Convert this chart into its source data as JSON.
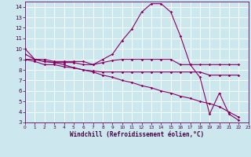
{
  "xlabel": "Windchill (Refroidissement éolien,°C)",
  "bg_color": "#cce8ee",
  "line_color": "#880066",
  "grid_color": "#aaddcc",
  "xlim": [
    0,
    23
  ],
  "ylim": [
    3,
    14.5
  ],
  "xticks": [
    0,
    1,
    2,
    3,
    4,
    5,
    6,
    7,
    8,
    9,
    10,
    11,
    12,
    13,
    14,
    15,
    16,
    17,
    18,
    19,
    20,
    21,
    22,
    23
  ],
  "yticks": [
    3,
    4,
    5,
    6,
    7,
    8,
    9,
    10,
    11,
    12,
    13,
    14
  ],
  "line1_y": [
    10.0,
    9.0,
    9.0,
    8.8,
    8.8,
    8.8,
    8.8,
    8.5,
    9.0,
    9.5,
    10.8,
    11.9,
    13.5,
    14.3,
    14.3,
    13.5,
    11.2,
    8.5,
    7.3,
    3.8,
    5.8,
    3.8,
    3.2
  ],
  "line1_x": [
    0,
    1,
    2,
    3,
    4,
    5,
    6,
    7,
    8,
    9,
    10,
    11,
    12,
    13,
    14,
    15,
    16,
    17,
    18,
    19,
    20,
    21,
    22
  ],
  "line2_y": [
    9.0,
    9.0,
    8.8,
    8.7,
    8.7,
    8.7,
    8.5,
    8.5,
    8.7,
    8.9,
    9.0,
    9.0,
    9.0,
    9.0,
    9.0,
    9.0,
    8.5,
    8.5,
    8.5,
    8.5,
    8.5,
    8.5,
    8.5
  ],
  "line2_x": [
    0,
    1,
    2,
    3,
    4,
    5,
    6,
    7,
    8,
    9,
    10,
    11,
    12,
    13,
    14,
    15,
    16,
    17,
    18,
    19,
    20,
    21,
    22
  ],
  "line3_y": [
    9.0,
    8.8,
    8.5,
    8.5,
    8.3,
    8.2,
    8.0,
    7.9,
    7.8,
    7.8,
    7.8,
    7.8,
    7.8,
    7.8,
    7.8,
    7.8,
    7.8,
    7.8,
    7.8,
    7.5,
    7.5,
    7.5,
    7.5
  ],
  "line3_x": [
    0,
    1,
    2,
    3,
    4,
    5,
    6,
    7,
    8,
    9,
    10,
    11,
    12,
    13,
    14,
    15,
    16,
    17,
    18,
    19,
    20,
    21,
    22
  ],
  "line4_y": [
    9.5,
    9.0,
    8.8,
    8.7,
    8.5,
    8.2,
    8.0,
    7.8,
    7.5,
    7.3,
    7.0,
    6.8,
    6.5,
    6.3,
    6.0,
    5.8,
    5.5,
    5.3,
    5.0,
    4.8,
    4.5,
    4.0,
    3.5
  ],
  "line4_x": [
    0,
    1,
    2,
    3,
    4,
    5,
    6,
    7,
    8,
    9,
    10,
    11,
    12,
    13,
    14,
    15,
    16,
    17,
    18,
    19,
    20,
    21,
    22
  ]
}
